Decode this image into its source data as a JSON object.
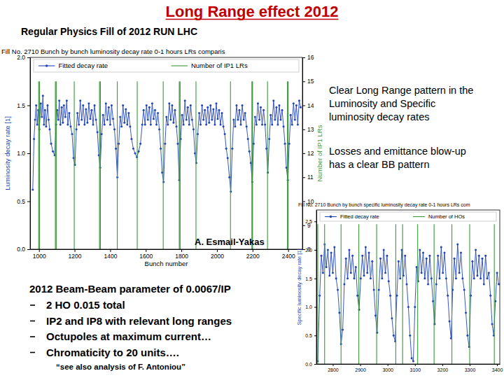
{
  "slide": {
    "title": "Long Range effect 2012",
    "subtitle": "Regular Physics Fill of 2012 RUN LHC",
    "notes": [
      [
        "Clear Long Range pattern in the",
        "Luminosity and Specific",
        "luminosity decay rates"
      ],
      [
        "Losses and emittance blow-up",
        "has a clear BB pattern"
      ]
    ],
    "credit": "A. Esmail-Yakas",
    "summary": {
      "heading": "2012 Beam-Beam parameter of 0.0067/IP",
      "bullets": [
        "2 HO 0.015 total",
        "IP2 and IP8 with relevant long ranges",
        "Octupoles at maximum current…",
        "Chromaticity to 20 units…."
      ],
      "reference": "“see also analysis of F. Antoniou”"
    }
  },
  "chart_data": [
    {
      "type": "line",
      "title": "Fill No. 2710 Bunch by bunch luminosity decay rate 0-1 hours LRs comparis",
      "xlabel": "Bunch number",
      "ylabel": "Luminosity decay rate [1]",
      "y2label": "Number of IP1 LRs",
      "xlim": [
        950,
        2480
      ],
      "xticks": [
        1000,
        1200,
        1400,
        1600,
        1800,
        2000,
        2200,
        2400
      ],
      "ylim": [
        0,
        2.0
      ],
      "yticks": [
        {
          "value": 0,
          "label": "0.0"
        },
        0.5,
        {
          "value": 1.0,
          "label": "1.0"
        },
        1.5,
        {
          "value": 2.0,
          "label": "2.0"
        }
      ],
      "y2lim": [
        8,
        16
      ],
      "y2ticks": [
        8,
        9,
        10,
        11,
        12,
        13,
        14,
        15,
        16
      ],
      "legend": "top",
      "series": [
        {
          "name": "Fitted decay rate",
          "color": "#2345b5",
          "marker": "circle",
          "x": [
            965,
            972,
            978,
            984,
            990,
            996,
            1002,
            1010,
            1016,
            1022,
            1028,
            1034,
            1040,
            1048,
            1054,
            1060,
            1068,
            1078,
            1088,
            1096,
            1102,
            1108,
            1114,
            1120,
            1128,
            1134,
            1140,
            1148,
            1156,
            1162,
            1170,
            1178,
            1186,
            1194,
            1202,
            1210,
            1216,
            1224,
            1232,
            1240,
            1248,
            1256,
            1264,
            1272,
            1280,
            1288,
            1296,
            1304,
            1312,
            1320,
            1328,
            1336,
            1344,
            1352,
            1360,
            1368,
            1376,
            1384,
            1392,
            1400,
            1408,
            1416,
            1424,
            1432,
            1440,
            1448,
            1456,
            1464,
            1472,
            1480,
            1488,
            1496,
            1504,
            1512,
            1520,
            1530,
            1540,
            1550,
            1560,
            1570,
            1580,
            1588,
            1596,
            1604,
            1612,
            1620,
            1628,
            1636,
            1644,
            1652,
            1660,
            1668,
            1676,
            1684,
            1692,
            1700,
            1708,
            1716,
            1724,
            1732,
            1740,
            1748,
            1756,
            1764,
            1772,
            1780,
            1788,
            1796,
            1804,
            1812,
            1820,
            1828,
            1836,
            1844,
            1852,
            1860,
            1868,
            1876,
            1884,
            1892,
            1900,
            1908,
            1916,
            1924,
            1932,
            1940,
            1948,
            1956,
            1964,
            1972,
            1980,
            1988,
            1996,
            2004,
            2012,
            2020,
            2028,
            2036,
            2044,
            2052,
            2060,
            2070,
            2078,
            2086,
            2094,
            2102,
            2110,
            2118,
            2126,
            2134,
            2142,
            2150,
            2158,
            2166,
            2174,
            2182,
            2190,
            2198,
            2206,
            2214,
            2222,
            2230,
            2238,
            2246,
            2254,
            2262,
            2270,
            2278,
            2286,
            2294,
            2302,
            2310,
            2318,
            2326,
            2334,
            2342,
            2350,
            2358,
            2366,
            2374,
            2382,
            2390,
            2398,
            2406,
            2414,
            2422,
            2430,
            2438,
            2446,
            2454,
            2462,
            2470
          ],
          "values": [
            0.62,
            1.15,
            1.35,
            1.5,
            1.3,
            1.45,
            1.25,
            1.52,
            1.38,
            1.6,
            1.3,
            1.45,
            1.28,
            1.5,
            1.35,
            1.25,
            1.1,
            1.02,
            0.98,
            1.3,
            1.45,
            1.35,
            1.55,
            1.3,
            1.48,
            1.32,
            1.5,
            1.38,
            1.55,
            1.3,
            1.42,
            1.28,
            1.2,
            0.95,
            0.88,
            1.25,
            1.42,
            1.3,
            1.55,
            1.35,
            1.5,
            1.3,
            1.46,
            1.32,
            1.52,
            1.36,
            1.45,
            1.3,
            1.5,
            1.35,
            1.22,
            0.98,
            0.85,
            1.2,
            1.4,
            1.3,
            1.52,
            1.35,
            1.48,
            1.3,
            1.5,
            1.36,
            1.25,
            1.05,
            0.75,
            1.1,
            1.38,
            1.28,
            1.5,
            1.32,
            1.46,
            1.3,
            1.42,
            1.28,
            1.15,
            1.05,
            1.0,
            0.96,
            1.02,
            1.1,
            1.3,
            1.45,
            1.3,
            1.5,
            1.35,
            1.48,
            1.3,
            1.52,
            1.36,
            1.45,
            1.3,
            1.42,
            1.25,
            1.05,
            0.8,
            0.7,
            1.1,
            1.38,
            1.3,
            1.52,
            1.35,
            1.5,
            1.32,
            1.45,
            1.28,
            1.1,
            0.72,
            1.15,
            1.4,
            1.3,
            1.55,
            1.35,
            1.48,
            1.3,
            1.5,
            1.35,
            1.25,
            1.0,
            0.9,
            1.2,
            1.42,
            1.3,
            1.5,
            1.35,
            1.45,
            1.3,
            1.48,
            1.32,
            1.5,
            1.35,
            1.46,
            1.3,
            1.52,
            1.36,
            1.45,
            1.3,
            1.42,
            1.28,
            1.2,
            1.05,
            0.95,
            0.75,
            0.6,
            1.05,
            1.35,
            1.28,
            1.5,
            1.35,
            1.45,
            1.3,
            1.5,
            1.35,
            1.42,
            1.28,
            1.15,
            1.02,
            0.9,
            0.7,
            1.1,
            1.38,
            1.3,
            1.52,
            1.35,
            1.48,
            1.3,
            1.45,
            1.3,
            1.05,
            0.8,
            1.15,
            1.4,
            1.3,
            1.55,
            1.35,
            1.48,
            1.3,
            1.5,
            1.35,
            1.45,
            1.28,
            1.1,
            0.85,
            0.72,
            1.1,
            1.4,
            1.3,
            1.52,
            1.35,
            1.5,
            1.3,
            1.55,
            1.48
          ]
        },
        {
          "name": "Number of IP1 LRs",
          "color": "#3a9a3a",
          "axis": "y2",
          "x": [
            998,
            998,
            999,
            1003,
            1003,
            1004,
            1092,
            1092,
            1093,
            1097,
            1097,
            1098,
            1198,
            1198,
            1199,
            1340,
            1340,
            1341,
            1345,
            1345,
            1346,
            1440,
            1440,
            1441,
            1552,
            1552,
            1553,
            1698,
            1698,
            1699,
            1788,
            1788,
            1789,
            1793,
            1793,
            1794,
            1882,
            1882,
            1883,
            2076,
            2076,
            2077,
            2196,
            2196,
            2197,
            2200,
            2200,
            2201,
            2284,
            2284,
            2285,
            2396,
            2396,
            2397,
            2400,
            2400,
            2401
          ],
          "values": [
            15,
            8,
            null,
            15,
            8,
            null,
            15,
            8,
            null,
            15,
            8,
            null,
            15,
            8,
            null,
            15,
            8,
            null,
            15,
            8,
            null,
            15,
            8,
            null,
            15,
            8,
            null,
            15,
            8,
            null,
            15,
            8,
            null,
            15,
            8,
            null,
            15,
            8,
            null,
            15,
            8,
            null,
            15,
            8,
            null,
            15,
            8,
            null,
            15,
            8,
            null,
            15,
            8,
            null,
            15,
            8,
            null
          ]
        }
      ]
    },
    {
      "type": "line",
      "title": "Fill No. 2710 Bunch by bunch specific luminosity decay rate 0-1 hours LRs com",
      "ylabel": "Specific luminosity decay rate [1]",
      "xlim": [
        2740,
        3410
      ],
      "xticks": [
        2800,
        2900,
        3000,
        3100,
        3200,
        3300,
        3400
      ],
      "ylim": [
        0,
        2.7
      ],
      "yticks": [
        {
          "value": 0,
          "label": "0.0"
        },
        0.5,
        {
          "value": 1.0,
          "label": "1.0"
        },
        1.5,
        {
          "value": 2.0,
          "label": "2.0"
        },
        2.5
      ],
      "legend": "top",
      "series": [
        {
          "name": "Fitted decay rate",
          "color": "#2345b5",
          "marker": "circle",
          "x": [
            2745,
            2752,
            2758,
            2764,
            2770,
            2776,
            2782,
            2788,
            2794,
            2800,
            2806,
            2812,
            2818,
            2824,
            2830,
            2836,
            2842,
            2848,
            2854,
            2860,
            2866,
            2872,
            2878,
            2884,
            2890,
            2896,
            2902,
            2908,
            2914,
            2920,
            2926,
            2932,
            2938,
            2944,
            2950,
            2956,
            2962,
            2968,
            2974,
            2980,
            2986,
            2992,
            2998,
            3004,
            3010,
            3016,
            3022,
            3028,
            3034,
            3040,
            3046,
            3052,
            3058,
            3064,
            3070,
            3076,
            3082,
            3088,
            3094,
            3100,
            3106,
            3112,
            3118,
            3124,
            3130,
            3136,
            3142,
            3148,
            3154,
            3160,
            3166,
            3172,
            3178,
            3184,
            3190,
            3196,
            3202,
            3208,
            3214,
            3220,
            3226,
            3232,
            3238,
            3244,
            3250,
            3256,
            3262,
            3268,
            3274,
            3280,
            3286,
            3292,
            3298,
            3304,
            3310,
            3316,
            3322,
            3328,
            3334,
            3340,
            3346,
            3352,
            3358,
            3364,
            3370,
            3376,
            3382,
            3388,
            3394,
            3400,
            3406
          ],
          "values": [
            0.05,
            1.2,
            1.9,
            1.6,
            2.1,
            1.7,
            2.0,
            1.55,
            1.95,
            1.6,
            2.05,
            1.5,
            1.3,
            0.9,
            0.35,
            0.6,
            1.4,
            1.85,
            1.5,
            2.0,
            1.6,
            1.9,
            1.5,
            1.7,
            1.2,
            0.95,
            1.5,
            1.9,
            1.55,
            2.05,
            1.6,
            1.95,
            1.5,
            1.8,
            1.3,
            0.85,
            0.55,
            1.3,
            1.85,
            1.5,
            2.0,
            1.6,
            1.9,
            1.45,
            1.2,
            0.8,
            0.5,
            0.4,
            1.2,
            1.8,
            1.5,
            2.0,
            1.55,
            1.9,
            1.4,
            1.0,
            0.5,
            0.1,
            0.05,
            1.0,
            1.7,
            1.45,
            2.0,
            1.6,
            1.95,
            1.5,
            1.85,
            1.4,
            1.9,
            1.5,
            1.1,
            0.7,
            1.4,
            1.9,
            1.5,
            2.05,
            1.6,
            1.95,
            1.5,
            1.2,
            0.75,
            0.45,
            1.3,
            1.85,
            1.5,
            2.1,
            1.6,
            1.95,
            1.5,
            1.3,
            0.9,
            0.5,
            0.3,
            1.2,
            1.8,
            1.5,
            2.0,
            1.55,
            1.9,
            1.5,
            1.85,
            1.4,
            1.9,
            1.5,
            1.6,
            1.2,
            0.7,
            0.5,
            1.1,
            1.6,
            1.4
          ]
        },
        {
          "name": "Number of HOs",
          "color": "#3a9a3a",
          "x": [
            2745,
            2745,
            2746,
            2770,
            2770,
            2771,
            2830,
            2830,
            2831,
            2895,
            2895,
            2896,
            2960,
            2960,
            2961,
            3030,
            3030,
            3031,
            3055,
            3055,
            3056,
            3110,
            3110,
            3111,
            3170,
            3170,
            3171,
            3235,
            3235,
            3236,
            3300,
            3300,
            3301,
            3390,
            3390,
            3391
          ],
          "values": [
            2.45,
            0,
            null,
            2.45,
            0,
            null,
            2.45,
            0,
            null,
            2.45,
            0,
            null,
            2.45,
            0,
            null,
            2.45,
            0,
            null,
            2.45,
            0,
            null,
            2.45,
            0,
            null,
            2.45,
            0,
            null,
            2.45,
            0,
            null,
            2.45,
            0,
            null,
            2.45,
            0,
            null
          ]
        }
      ]
    }
  ]
}
